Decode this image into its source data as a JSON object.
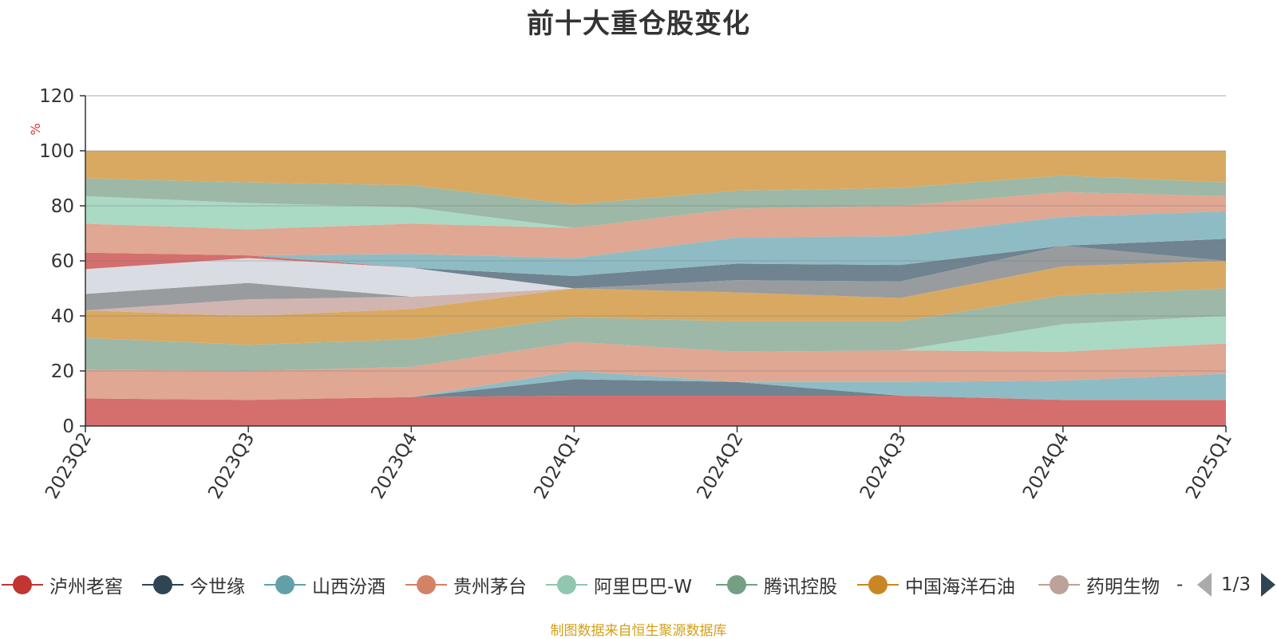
{
  "chart_data": {
    "type": "area",
    "title": "前十大重仓股变化",
    "ylabel": "%",
    "ylim": [
      0,
      120
    ],
    "yticks": [
      0,
      20,
      40,
      60,
      80,
      100,
      120
    ],
    "grid": true,
    "categories": [
      "2023Q2",
      "2023Q3",
      "2023Q4",
      "2024Q1",
      "2024Q2",
      "2024Q3",
      "2024Q4",
      "2025Q1"
    ],
    "layers": [
      {
        "color": "#d46f6d",
        "values": [
          [
            0,
            10
          ],
          [
            0,
            9.5
          ],
          [
            0,
            10.5
          ],
          [
            0,
            11
          ],
          [
            0,
            11
          ],
          [
            0,
            11
          ],
          [
            0,
            9.5
          ],
          [
            0,
            9.5
          ]
        ]
      },
      {
        "color": "#6f8390",
        "values": [
          [
            10,
            10
          ],
          [
            9.5,
            9.5
          ],
          [
            10.5,
            10.5
          ],
          [
            11,
            17
          ],
          [
            11,
            16
          ],
          [
            11,
            11
          ],
          [
            9.5,
            9.5
          ],
          [
            9.5,
            9.5
          ]
        ]
      },
      {
        "color": "#8fbcc4",
        "values": [
          [
            10,
            10
          ],
          [
            9.5,
            9.5
          ],
          [
            10.5,
            10.5
          ],
          [
            17,
            20
          ],
          [
            16,
            16
          ],
          [
            11,
            16
          ],
          [
            9.5,
            16.5
          ],
          [
            9.5,
            19
          ]
        ]
      },
      {
        "color": "#e0a792",
        "values": [
          [
            10,
            20.5
          ],
          [
            9.5,
            20
          ],
          [
            10.5,
            21.5
          ],
          [
            20,
            30.5
          ],
          [
            16,
            27
          ],
          [
            16,
            27.5
          ],
          [
            16.5,
            27
          ],
          [
            19,
            30
          ]
        ]
      },
      {
        "color": "#aad9c4",
        "values": [
          [
            20.5,
            20.5
          ],
          [
            20,
            20
          ],
          [
            21.5,
            21.5
          ],
          [
            30.5,
            30.5
          ],
          [
            27,
            27
          ],
          [
            27.5,
            27.5
          ],
          [
            27,
            37
          ],
          [
            30,
            40
          ]
        ]
      },
      {
        "color": "#9db8a6",
        "values": [
          [
            20.5,
            32
          ],
          [
            20,
            29.5
          ],
          [
            21.5,
            31.5
          ],
          [
            30.5,
            39.5
          ],
          [
            27,
            38
          ],
          [
            27.5,
            38
          ],
          [
            37,
            47.5
          ],
          [
            40,
            50
          ]
        ]
      },
      {
        "color": "#d9a962",
        "values": [
          [
            32,
            42
          ],
          [
            29.5,
            40
          ],
          [
            31.5,
            42.5
          ],
          [
            39.5,
            50
          ],
          [
            38,
            48.5
          ],
          [
            38,
            46.5
          ],
          [
            47.5,
            58
          ],
          [
            50,
            60
          ]
        ]
      },
      {
        "color": "#d1b5b0",
        "values": [
          [
            42,
            42
          ],
          [
            40,
            46
          ],
          [
            42.5,
            47
          ],
          [
            50,
            50
          ],
          [
            48.5,
            48.5
          ],
          [
            46.5,
            46.5
          ],
          [
            58,
            58
          ],
          [
            60,
            60
          ]
        ]
      },
      {
        "color": "#999c9e",
        "values": [
          [
            42,
            48
          ],
          [
            46,
            52
          ],
          [
            47,
            47
          ],
          [
            50,
            50
          ],
          [
            48.5,
            53
          ],
          [
            46.5,
            52.5
          ],
          [
            58,
            65.5
          ],
          [
            60,
            60
          ]
        ]
      },
      {
        "color": "#d9dde3",
        "values": [
          [
            48,
            57
          ],
          [
            52,
            61
          ],
          [
            47,
            57.5
          ],
          [
            50,
            50
          ],
          [
            53,
            53
          ],
          [
            52.5,
            52.5
          ],
          [
            65.5,
            65.5
          ],
          [
            60,
            60
          ]
        ]
      },
      {
        "color": "#d46f6d",
        "values": [
          [
            57,
            63
          ],
          [
            61,
            62
          ],
          [
            57.5,
            57.5
          ],
          [
            50,
            50
          ],
          [
            53,
            53
          ],
          [
            52.5,
            52.5
          ],
          [
            65.5,
            65.5
          ],
          [
            60,
            60
          ]
        ]
      },
      {
        "color": "#6f8390",
        "values": [
          [
            63,
            63
          ],
          [
            62,
            62
          ],
          [
            57.5,
            57.5
          ],
          [
            50,
            54.5
          ],
          [
            53,
            59
          ],
          [
            52.5,
            58.5
          ],
          [
            65.5,
            65.5
          ],
          [
            60,
            68
          ]
        ]
      },
      {
        "color": "#8fbcc4",
        "values": [
          [
            63,
            63
          ],
          [
            62,
            62
          ],
          [
            57.5,
            62.5
          ],
          [
            54.5,
            61
          ],
          [
            59,
            68.5
          ],
          [
            58.5,
            69
          ],
          [
            65.5,
            76
          ],
          [
            68,
            78
          ]
        ]
      },
      {
        "color": "#e0a792",
        "values": [
          [
            63,
            73.5
          ],
          [
            62,
            71.5
          ],
          [
            62.5,
            73.5
          ],
          [
            61,
            72
          ],
          [
            68.5,
            79
          ],
          [
            69,
            80
          ],
          [
            76,
            85
          ],
          [
            78,
            83.5
          ]
        ]
      },
      {
        "color": "#aad9c4",
        "values": [
          [
            73.5,
            83.5
          ],
          [
            71.5,
            81
          ],
          [
            73.5,
            79.5
          ],
          [
            72,
            72
          ],
          [
            79,
            79
          ],
          [
            80,
            80
          ],
          [
            85,
            85
          ],
          [
            83.5,
            83.5
          ]
        ]
      },
      {
        "color": "#9db8a6",
        "values": [
          [
            83.5,
            90
          ],
          [
            81,
            88.5
          ],
          [
            79.5,
            87.5
          ],
          [
            72,
            80.5
          ],
          [
            79,
            85.5
          ],
          [
            80,
            86.5
          ],
          [
            85,
            91
          ],
          [
            83.5,
            88.5
          ]
        ]
      },
      {
        "color": "#d9a962",
        "values": [
          [
            90,
            100
          ],
          [
            88.5,
            100
          ],
          [
            87.5,
            100
          ],
          [
            80.5,
            100
          ],
          [
            85.5,
            100
          ],
          [
            86.5,
            100
          ],
          [
            91,
            100
          ],
          [
            88.5,
            100
          ]
        ]
      }
    ]
  },
  "legend": {
    "items": [
      {
        "name": "泸州老窖",
        "color": "#c23531"
      },
      {
        "name": "今世缘",
        "color": "#2f4554"
      },
      {
        "name": "山西汾酒",
        "color": "#61a0a8"
      },
      {
        "name": "贵州茅台",
        "color": "#d48265"
      },
      {
        "name": "阿里巴巴-W",
        "color": "#91c7ae"
      },
      {
        "name": "腾讯控股",
        "color": "#749f83"
      },
      {
        "name": "中国海洋石油",
        "color": "#ca8622"
      },
      {
        "name": "药明生物",
        "color": "#bda29a"
      }
    ],
    "more": "-",
    "page": "1/3"
  },
  "footer": "制图数据来自恒生聚源数据库"
}
